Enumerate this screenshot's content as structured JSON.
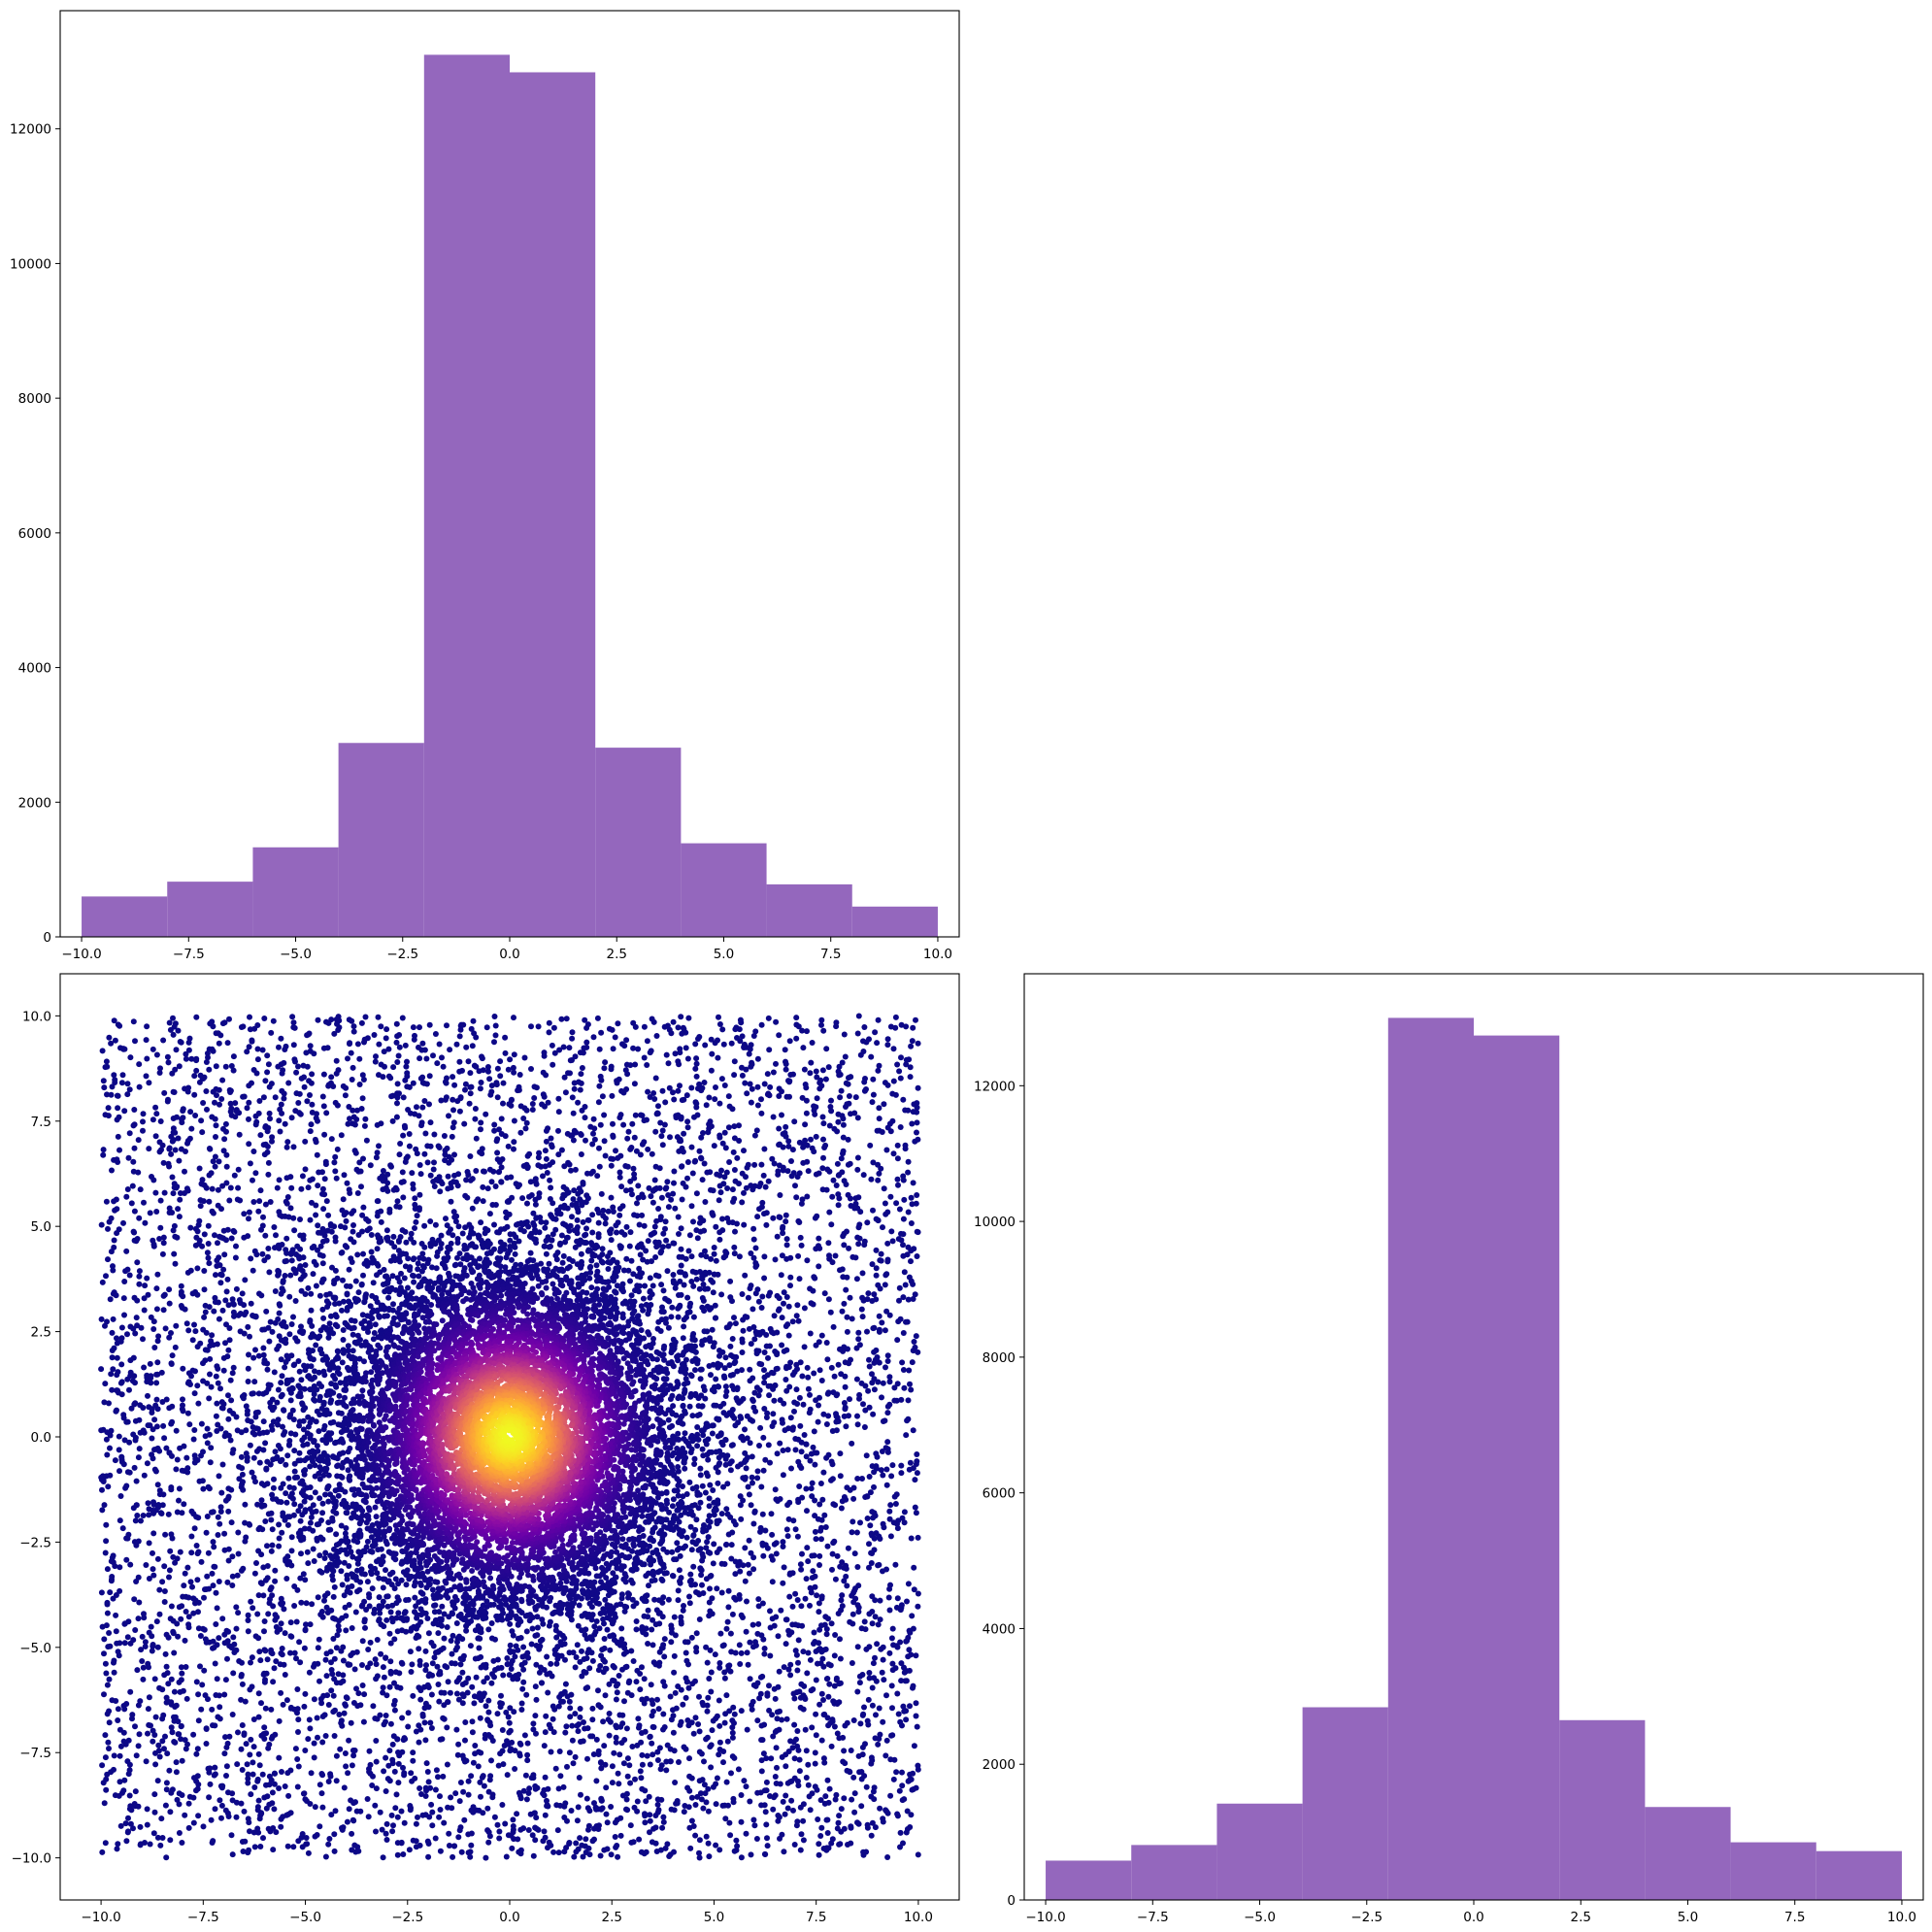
{
  "chart_data": [
    {
      "type": "bar",
      "subtype": "histogram",
      "bin_edges": [
        -10,
        -8,
        -6,
        -4,
        -2,
        0,
        2,
        4,
        6,
        8,
        10
      ],
      "values": [
        600,
        820,
        1330,
        2880,
        13100,
        12840,
        2810,
        1390,
        780,
        450
      ],
      "color": "#9467bd",
      "xlim": [
        -10.5,
        10.5
      ],
      "ylim": [
        0,
        13755
      ],
      "xticks": [
        -10.0,
        -7.5,
        -5.0,
        -2.5,
        0.0,
        2.5,
        5.0,
        7.5,
        10.0
      ],
      "xtick_labels": [
        "−10.0",
        "−7.5",
        "−5.0",
        "−2.5",
        "0.0",
        "2.5",
        "5.0",
        "7.5",
        "10.0"
      ],
      "yticks": [
        0,
        2000,
        4000,
        6000,
        8000,
        10000,
        12000
      ],
      "ytick_labels": [
        "0",
        "2000",
        "4000",
        "6000",
        "8000",
        "10000",
        "12000"
      ],
      "grid": false,
      "title": "",
      "xlabel": "",
      "ylabel": ""
    },
    {
      "type": "scatter",
      "description_of_data": "uniformly distributed points in [-10,10] x [-10,10] plus a dense Gaussian cluster centred at (0,0); colour (plasma colormap) encodes closeness to origin",
      "n_uniform_points": 7000,
      "n_cluster_points": 9000,
      "x_range": [
        -10,
        10
      ],
      "y_range": [
        -10,
        10
      ],
      "cluster_center": [
        0,
        0
      ],
      "cluster_std": 2.2,
      "colormap": "plasma",
      "colormap_stops": [
        "#0d0887",
        "#3e049c",
        "#6a00a8",
        "#8f0da4",
        "#b12a90",
        "#cc4778",
        "#e16462",
        "#f2844b",
        "#fca636",
        "#fcce25",
        "#f0f921"
      ],
      "xlim": [
        -11,
        11
      ],
      "ylim": [
        -11,
        11
      ],
      "xticks": [
        -10.0,
        -7.5,
        -5.0,
        -2.5,
        0.0,
        2.5,
        5.0,
        7.5,
        10.0
      ],
      "xtick_labels": [
        "−10.0",
        "−7.5",
        "−5.0",
        "−2.5",
        "0.0",
        "2.5",
        "5.0",
        "7.5",
        "10.0"
      ],
      "yticks": [
        -10.0,
        -7.5,
        -5.0,
        -2.5,
        0.0,
        2.5,
        5.0,
        7.5,
        10.0
      ],
      "ytick_labels": [
        "−10.0",
        "−7.5",
        "−5.0",
        "−2.5",
        "0.0",
        "2.5",
        "5.0",
        "7.5",
        "10.0"
      ],
      "grid": false,
      "title": "",
      "xlabel": "",
      "ylabel": ""
    },
    {
      "type": "bar",
      "subtype": "histogram",
      "bin_edges": [
        -10,
        -8,
        -6,
        -4,
        -2,
        0,
        2,
        4,
        6,
        8,
        10
      ],
      "values": [
        580,
        810,
        1420,
        2840,
        13000,
        12740,
        2650,
        1370,
        850,
        720
      ],
      "color": "#9467bd",
      "xlim": [
        -10.5,
        10.5
      ],
      "ylim": [
        0,
        13650
      ],
      "xticks": [
        -10.0,
        -7.5,
        -5.0,
        -2.5,
        0.0,
        2.5,
        5.0,
        7.5,
        10.0
      ],
      "xtick_labels": [
        "−10.0",
        "−7.5",
        "−5.0",
        "−2.5",
        "0.0",
        "2.5",
        "5.0",
        "7.5",
        "10.0"
      ],
      "yticks": [
        0,
        2000,
        4000,
        6000,
        8000,
        10000,
        12000
      ],
      "ytick_labels": [
        "0",
        "2000",
        "4000",
        "6000",
        "8000",
        "10000",
        "12000"
      ],
      "grid": false,
      "title": "",
      "xlabel": "",
      "ylabel": ""
    }
  ]
}
